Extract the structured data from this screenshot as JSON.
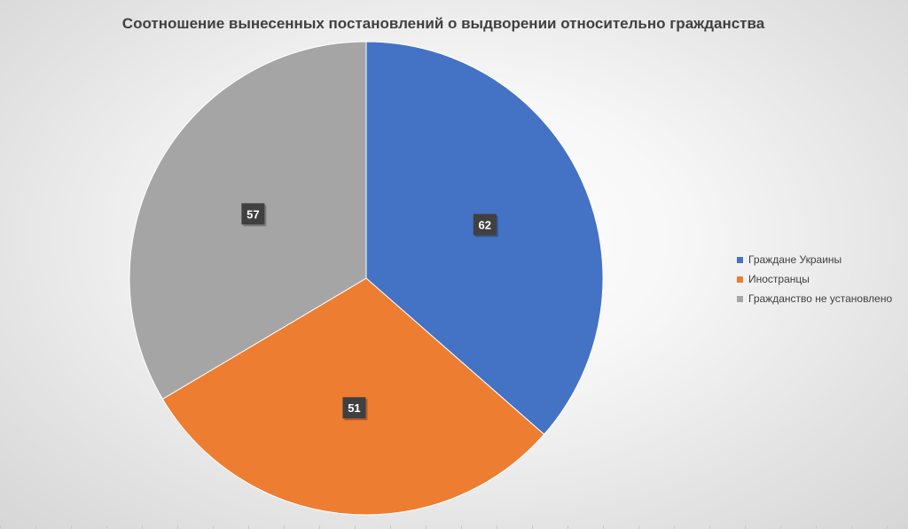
{
  "chart_data": {
    "type": "pie",
    "title": "Соотношение вынесенных постановлений о выдворении относительно гражданства",
    "categories": [
      "Граждане Украины",
      "Иностранцы",
      "Гражданство не установлено"
    ],
    "values": [
      62,
      51,
      57
    ],
    "colors": [
      "#4472c4",
      "#ed7d31",
      "#a5a5a5"
    ],
    "legend_position": "right",
    "data_labels": true
  }
}
